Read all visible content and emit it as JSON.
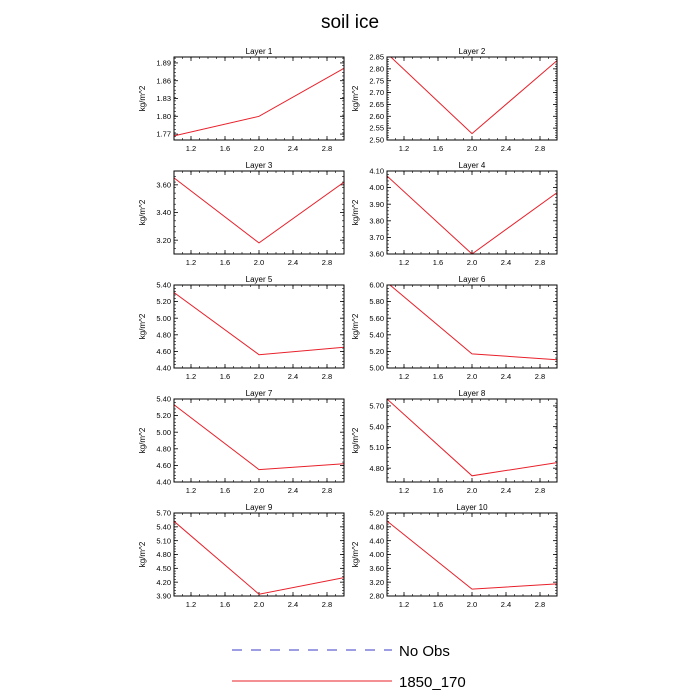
{
  "figure_title": "soil ice",
  "legend": [
    {
      "label": "No Obs",
      "color": "#3b3bc8",
      "dashed": true
    },
    {
      "label": "1850_170",
      "color": "#e8202a",
      "dashed": false
    }
  ],
  "chart_data": [
    {
      "type": "line",
      "title": "Layer 1",
      "ylabel": "kg/m^2",
      "xlim": [
        1,
        3
      ],
      "ylim": [
        1.76,
        1.9
      ],
      "xticks": [
        "1.2",
        "1.6",
        "2.0",
        "2.4",
        "2.8"
      ],
      "yticks": [
        "1.77",
        "1.80",
        "1.83",
        "1.86",
        "1.89"
      ],
      "x": [
        1,
        2,
        3
      ],
      "series": [
        {
          "name": "1850_170",
          "values": [
            1.767,
            1.8,
            1.881
          ]
        }
      ]
    },
    {
      "type": "line",
      "title": "Layer 2",
      "ylabel": "kg/m^2",
      "xlim": [
        1,
        3
      ],
      "ylim": [
        2.5,
        2.85
      ],
      "xticks": [
        "1.2",
        "1.6",
        "2.0",
        "2.4",
        "2.8"
      ],
      "yticks": [
        "2.50",
        "2.55",
        "2.60",
        "2.65",
        "2.70",
        "2.75",
        "2.80",
        "2.85"
      ],
      "x": [
        1,
        2,
        3
      ],
      "series": [
        {
          "name": "1850_170",
          "values": [
            2.865,
            2.527,
            2.835
          ]
        }
      ]
    },
    {
      "type": "line",
      "title": "Layer 3",
      "ylabel": "kg/m^2",
      "xlim": [
        1,
        3
      ],
      "ylim": [
        3.1,
        3.7
      ],
      "xticks": [
        "1.2",
        "1.6",
        "2.0",
        "2.4",
        "2.8"
      ],
      "yticks": [
        "3.20",
        "3.40",
        "3.60"
      ],
      "x": [
        1,
        2,
        3
      ],
      "series": [
        {
          "name": "1850_170",
          "values": [
            3.65,
            3.18,
            3.62
          ]
        }
      ]
    },
    {
      "type": "line",
      "title": "Layer 4",
      "ylabel": "kg/m^2",
      "xlim": [
        1,
        3
      ],
      "ylim": [
        3.6,
        4.1
      ],
      "xticks": [
        "1.2",
        "1.6",
        "2.0",
        "2.4",
        "2.8"
      ],
      "yticks": [
        "3.60",
        "3.70",
        "3.80",
        "3.90",
        "4.00",
        "4.10"
      ],
      "x": [
        1,
        2,
        3
      ],
      "series": [
        {
          "name": "1850_170",
          "values": [
            4.07,
            3.6,
            3.97
          ]
        }
      ]
    },
    {
      "type": "line",
      "title": "Layer 5",
      "ylabel": "kg/m^2",
      "xlim": [
        1,
        3
      ],
      "ylim": [
        4.4,
        5.4
      ],
      "xticks": [
        "1.2",
        "1.6",
        "2.0",
        "2.4",
        "2.8"
      ],
      "yticks": [
        "4.40",
        "4.60",
        "4.80",
        "5.00",
        "5.20",
        "5.40"
      ],
      "x": [
        1,
        2,
        3
      ],
      "series": [
        {
          "name": "1850_170",
          "values": [
            5.31,
            4.56,
            4.65
          ]
        }
      ]
    },
    {
      "type": "line",
      "title": "Layer 6",
      "ylabel": "kg/m^2",
      "xlim": [
        1,
        3
      ],
      "ylim": [
        5.0,
        6.0
      ],
      "xticks": [
        "1.2",
        "1.6",
        "2.0",
        "2.4",
        "2.8"
      ],
      "yticks": [
        "5.00",
        "5.20",
        "5.40",
        "5.60",
        "5.80",
        "6.00"
      ],
      "x": [
        1,
        2,
        3
      ],
      "series": [
        {
          "name": "1850_170",
          "values": [
            6.03,
            5.17,
            5.1
          ]
        }
      ]
    },
    {
      "type": "line",
      "title": "Layer 7",
      "ylabel": "kg/m^2",
      "xlim": [
        1,
        3
      ],
      "ylim": [
        4.4,
        5.4
      ],
      "xticks": [
        "1.2",
        "1.6",
        "2.0",
        "2.4",
        "2.8"
      ],
      "yticks": [
        "4.40",
        "4.60",
        "4.80",
        "5.00",
        "5.20",
        "5.40"
      ],
      "x": [
        1,
        2,
        3
      ],
      "series": [
        {
          "name": "1850_170",
          "values": [
            5.33,
            4.55,
            4.62
          ]
        }
      ]
    },
    {
      "type": "line",
      "title": "Layer 8",
      "ylabel": "kg/m^2",
      "xlim": [
        1,
        3
      ],
      "ylim": [
        4.6,
        5.8
      ],
      "xticks": [
        "1.2",
        "1.6",
        "2.0",
        "2.4",
        "2.8"
      ],
      "yticks": [
        "4.80",
        "5.10",
        "5.40",
        "5.70"
      ],
      "x": [
        1,
        2,
        3
      ],
      "series": [
        {
          "name": "1850_170",
          "values": [
            5.8,
            4.69,
            4.88
          ]
        }
      ]
    },
    {
      "type": "line",
      "title": "Layer 9",
      "ylabel": "kg/m^2",
      "xlim": [
        1,
        3
      ],
      "ylim": [
        3.9,
        5.7
      ],
      "xticks": [
        "1.2",
        "1.6",
        "2.0",
        "2.4",
        "2.8"
      ],
      "yticks": [
        "3.90",
        "4.20",
        "4.50",
        "4.80",
        "5.10",
        "5.40",
        "5.70"
      ],
      "x": [
        1,
        2,
        3
      ],
      "series": [
        {
          "name": "1850_170",
          "values": [
            5.52,
            3.94,
            4.3
          ]
        }
      ]
    },
    {
      "type": "line",
      "title": "Layer 10",
      "ylabel": "kg/m^2",
      "xlim": [
        1,
        3
      ],
      "ylim": [
        2.8,
        5.2
      ],
      "xticks": [
        "1.2",
        "1.6",
        "2.0",
        "2.4",
        "2.8"
      ],
      "yticks": [
        "2.80",
        "3.20",
        "3.60",
        "4.00",
        "4.40",
        "4.80",
        "5.20"
      ],
      "x": [
        1,
        2,
        3
      ],
      "series": [
        {
          "name": "1850_170",
          "values": [
            4.97,
            3.0,
            3.15
          ]
        }
      ]
    }
  ]
}
